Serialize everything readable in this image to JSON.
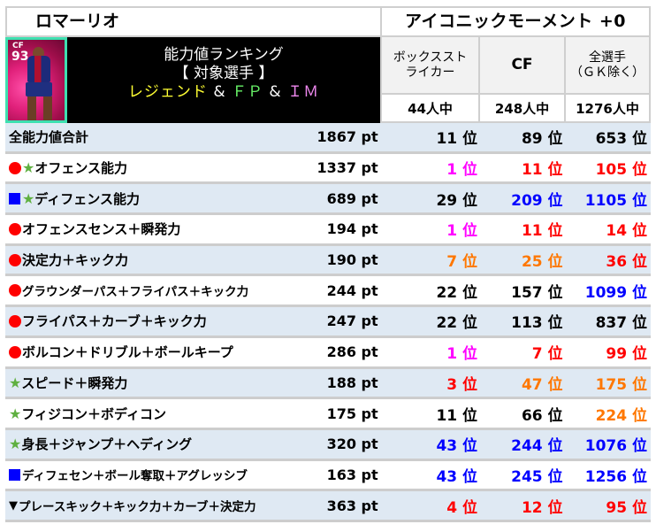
{
  "header": {
    "player_name": "ロマーリオ",
    "card_type": "アイコニックモーメント +0"
  },
  "portrait": {
    "position": "CF",
    "rating": "93",
    "frame_color": "#3ee0b0"
  },
  "banner": {
    "line1": "能力値ランキング",
    "line2": "【 対象選手 】",
    "line3": {
      "legend": "レジェンド",
      "amp1": " & ",
      "fp": "ＦＰ",
      "amp2": " & ",
      "im": "ＩＭ"
    }
  },
  "columns": [
    {
      "title_line1": "ボックススト",
      "title_line2": "ライカー",
      "count": "44人中"
    },
    {
      "title_line1": "CF",
      "title_line2": "",
      "count": "248人中"
    },
    {
      "title_line1": "全選手",
      "title_line2": "（ＧＫ除く）",
      "count": "1276人中"
    }
  ],
  "colors": {
    "black": "#000000",
    "magenta": "#ff00ff",
    "red": "#ff0000",
    "orange": "#ff7700",
    "blue": "#0000ff",
    "row_alt": "#dfe9f3",
    "star": "#5fb040"
  },
  "rows": [
    {
      "markers": [],
      "label": "全能力値合計",
      "pt": "1867 pt",
      "ranks": [
        {
          "text": "11 位",
          "color": "black"
        },
        {
          "text": "89 位",
          "color": "black"
        },
        {
          "text": "653 位",
          "color": "black"
        }
      ]
    },
    {
      "markers": [
        "circle",
        "star"
      ],
      "label": "オフェンス能力",
      "pt": "1337 pt",
      "ranks": [
        {
          "text": "1 位",
          "color": "magenta"
        },
        {
          "text": "11 位",
          "color": "red"
        },
        {
          "text": "105 位",
          "color": "red"
        }
      ]
    },
    {
      "markers": [
        "square",
        "star"
      ],
      "label": "ディフェンス能力",
      "pt": "689 pt",
      "ranks": [
        {
          "text": "29 位",
          "color": "black"
        },
        {
          "text": "209 位",
          "color": "blue"
        },
        {
          "text": "1105 位",
          "color": "blue"
        }
      ]
    },
    {
      "markers": [
        "circle"
      ],
      "label": "オフェンスセンス＋瞬発力",
      "pt": "194 pt",
      "ranks": [
        {
          "text": "1 位",
          "color": "magenta"
        },
        {
          "text": "11 位",
          "color": "red"
        },
        {
          "text": "14 位",
          "color": "red"
        }
      ]
    },
    {
      "markers": [
        "circle"
      ],
      "label": "決定力＋キック力",
      "pt": "190 pt",
      "ranks": [
        {
          "text": "7 位",
          "color": "orange"
        },
        {
          "text": "25 位",
          "color": "orange"
        },
        {
          "text": "36 位",
          "color": "red"
        }
      ]
    },
    {
      "markers": [
        "circle"
      ],
      "label": "グラウンダーパス＋フライパス＋キック力",
      "pt": "244 pt",
      "small": true,
      "ranks": [
        {
          "text": "22 位",
          "color": "black"
        },
        {
          "text": "157 位",
          "color": "black"
        },
        {
          "text": "1099 位",
          "color": "blue"
        }
      ]
    },
    {
      "markers": [
        "circle"
      ],
      "label": "フライパス＋カーブ＋キック力",
      "pt": "247 pt",
      "ranks": [
        {
          "text": "22 位",
          "color": "black"
        },
        {
          "text": "113 位",
          "color": "black"
        },
        {
          "text": "837 位",
          "color": "black"
        }
      ]
    },
    {
      "markers": [
        "circle"
      ],
      "label": "ボルコン＋ドリブル＋ボールキープ",
      "pt": "286 pt",
      "ranks": [
        {
          "text": "1 位",
          "color": "magenta"
        },
        {
          "text": "7 位",
          "color": "red"
        },
        {
          "text": "99 位",
          "color": "red"
        }
      ]
    },
    {
      "markers": [
        "star"
      ],
      "label": "スピード＋瞬発力",
      "pt": "188 pt",
      "ranks": [
        {
          "text": "3 位",
          "color": "red"
        },
        {
          "text": "47 位",
          "color": "orange"
        },
        {
          "text": "175 位",
          "color": "orange"
        }
      ]
    },
    {
      "markers": [
        "star"
      ],
      "label": "フィジコン＋ボディコン",
      "pt": "175 pt",
      "ranks": [
        {
          "text": "11 位",
          "color": "black"
        },
        {
          "text": "66 位",
          "color": "black"
        },
        {
          "text": "224 位",
          "color": "orange"
        }
      ]
    },
    {
      "markers": [
        "star"
      ],
      "label": "身長＋ジャンプ＋ヘディング",
      "pt": "320 pt",
      "ranks": [
        {
          "text": "43 位",
          "color": "blue"
        },
        {
          "text": "244 位",
          "color": "blue"
        },
        {
          "text": "1076 位",
          "color": "blue"
        }
      ]
    },
    {
      "markers": [
        "square"
      ],
      "label": "ディフェセン＋ボール奪取＋アグレッシブ",
      "pt": "163 pt",
      "small": true,
      "ranks": [
        {
          "text": "43 位",
          "color": "blue"
        },
        {
          "text": "245 位",
          "color": "blue"
        },
        {
          "text": "1256 位",
          "color": "blue"
        }
      ]
    },
    {
      "markers": [
        "triangle"
      ],
      "label": "プレースキック＋キック力＋カーブ＋決定力",
      "pt": "363 pt",
      "small": true,
      "ranks": [
        {
          "text": "4 位",
          "color": "red"
        },
        {
          "text": "12 位",
          "color": "red"
        },
        {
          "text": "95 位",
          "color": "red"
        }
      ]
    }
  ]
}
